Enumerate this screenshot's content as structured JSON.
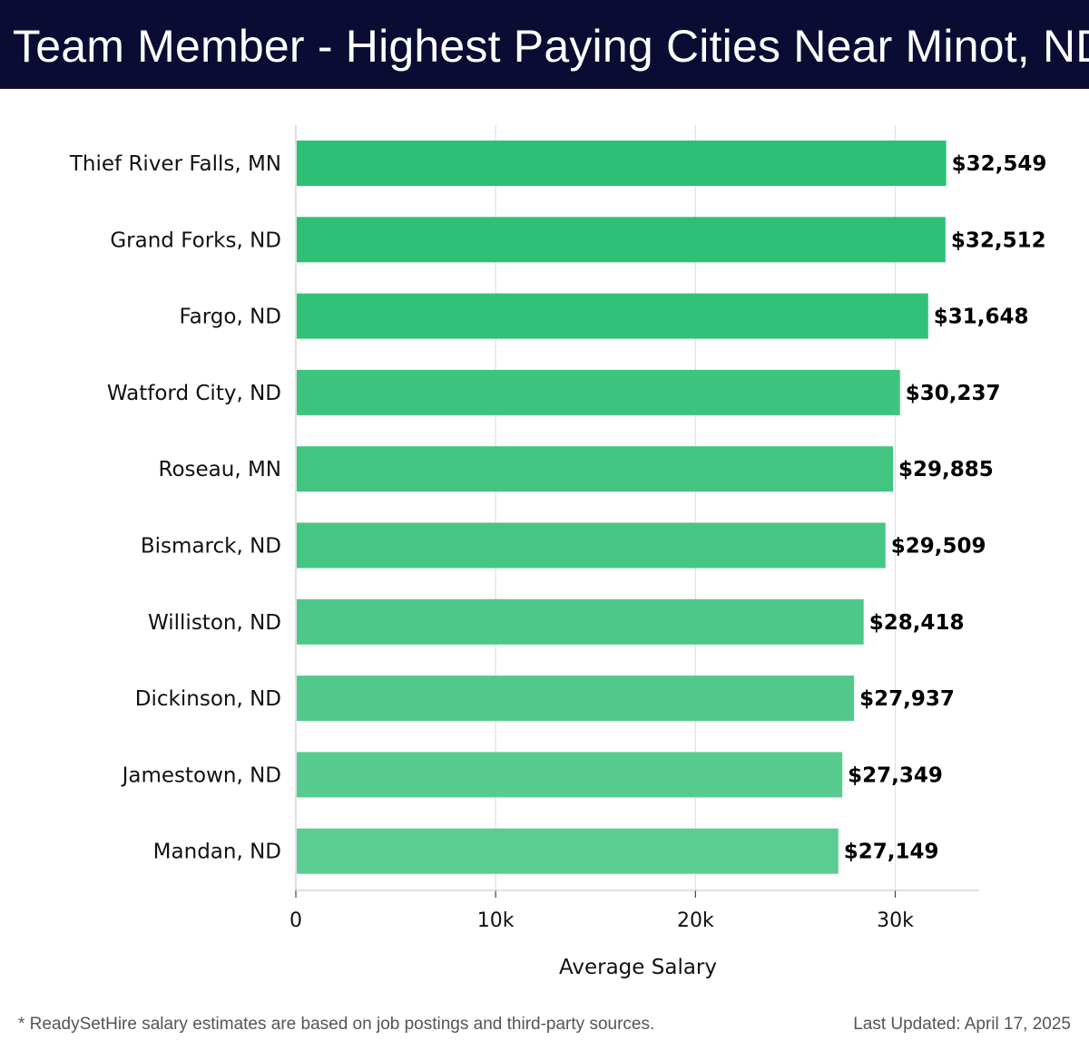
{
  "header": {
    "title": "Team Member - Highest Paying Cities Near Minot, ND"
  },
  "chart_data": {
    "type": "bar",
    "orientation": "horizontal",
    "title": "Team Member - Highest Paying Cities Near Minot, ND",
    "xlabel": "Average Salary",
    "ylabel": "",
    "xlim": [
      0,
      34200
    ],
    "xticks": [
      0,
      10000,
      20000,
      30000
    ],
    "xtick_labels": [
      "0",
      "10k",
      "20k",
      "30k"
    ],
    "grid": true,
    "categories": [
      "Thief River Falls, MN",
      "Grand Forks, ND",
      "Fargo, ND",
      "Watford City, ND",
      "Roseau, MN",
      "Bismarck, ND",
      "Williston, ND",
      "Dickinson, ND",
      "Jamestown, ND",
      "Mandan, ND"
    ],
    "values": [
      32549,
      32512,
      31648,
      30237,
      29885,
      29509,
      28418,
      27937,
      27349,
      27149
    ],
    "value_labels": [
      "$32,549",
      "$32,512",
      "$31,648",
      "$30,237",
      "$29,885",
      "$29,509",
      "$28,418",
      "$27,937",
      "$27,349",
      "$27,149"
    ],
    "bar_colors": [
      "#2cc077",
      "#2ec077",
      "#33c17a",
      "#3ec47f",
      "#41c581",
      "#46c683",
      "#4ec889",
      "#52c98b",
      "#58cc8f",
      "#5bcd91"
    ]
  },
  "footer": {
    "note": "* ReadySetHire salary estimates are based on job postings and third-party sources.",
    "updated": "Last Updated: April 17, 2025"
  }
}
